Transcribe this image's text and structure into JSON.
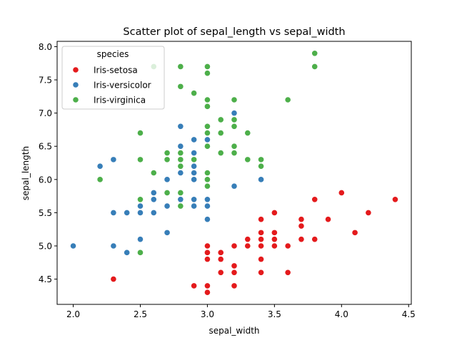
{
  "chart_data": {
    "type": "scatter",
    "title": "Scatter plot of sepal_length vs sepal_width",
    "xlabel": "sepal_width",
    "ylabel": "sepal_length",
    "xlim": [
      1.88,
      4.52
    ],
    "ylim": [
      4.12,
      8.08
    ],
    "xticks": [
      2.0,
      2.5,
      3.0,
      3.5,
      4.0,
      4.5
    ],
    "xtick_labels": [
      "2.0",
      "2.5",
      "3.0",
      "3.5",
      "4.0",
      "4.5"
    ],
    "yticks": [
      4.5,
      5.0,
      5.5,
      6.0,
      6.5,
      7.0,
      7.5,
      8.0
    ],
    "ytick_labels": [
      "4.5",
      "5.0",
      "5.5",
      "6.0",
      "6.5",
      "7.0",
      "7.5",
      "8.0"
    ],
    "grid": false,
    "legend": {
      "title": "species",
      "placement": "upper-left"
    },
    "series": [
      {
        "name": "Iris-setosa",
        "color": "#e41a1c",
        "points": [
          [
            3.5,
            5.1
          ],
          [
            3.0,
            4.9
          ],
          [
            3.2,
            4.7
          ],
          [
            3.1,
            4.6
          ],
          [
            3.6,
            5.0
          ],
          [
            3.9,
            5.4
          ],
          [
            3.4,
            4.6
          ],
          [
            3.4,
            5.0
          ],
          [
            2.9,
            4.4
          ],
          [
            3.1,
            4.9
          ],
          [
            3.7,
            5.4
          ],
          [
            3.4,
            4.8
          ],
          [
            3.0,
            4.8
          ],
          [
            3.0,
            4.3
          ],
          [
            4.0,
            5.8
          ],
          [
            4.4,
            5.7
          ],
          [
            3.9,
            5.4
          ],
          [
            3.5,
            5.1
          ],
          [
            3.8,
            5.7
          ],
          [
            3.8,
            5.1
          ],
          [
            3.4,
            5.4
          ],
          [
            3.7,
            5.1
          ],
          [
            3.6,
            4.6
          ],
          [
            3.3,
            5.1
          ],
          [
            3.4,
            4.8
          ],
          [
            3.0,
            5.0
          ],
          [
            3.4,
            5.0
          ],
          [
            3.5,
            5.2
          ],
          [
            3.4,
            5.2
          ],
          [
            3.2,
            4.7
          ],
          [
            3.1,
            4.8
          ],
          [
            3.4,
            5.4
          ],
          [
            4.1,
            5.2
          ],
          [
            4.2,
            5.5
          ],
          [
            3.1,
            4.9
          ],
          [
            3.2,
            5.0
          ],
          [
            3.5,
            5.5
          ],
          [
            3.1,
            4.9
          ],
          [
            3.0,
            4.4
          ],
          [
            3.4,
            5.1
          ],
          [
            3.5,
            5.0
          ],
          [
            2.3,
            4.5
          ],
          [
            3.2,
            4.4
          ],
          [
            3.5,
            5.0
          ],
          [
            3.8,
            5.1
          ],
          [
            3.0,
            4.8
          ],
          [
            3.8,
            5.1
          ],
          [
            3.2,
            4.6
          ],
          [
            3.7,
            5.3
          ],
          [
            3.3,
            5.0
          ]
        ]
      },
      {
        "name": "Iris-versicolor",
        "color": "#377eb8",
        "points": [
          [
            3.2,
            7.0
          ],
          [
            3.2,
            6.4
          ],
          [
            3.1,
            6.9
          ],
          [
            2.3,
            5.5
          ],
          [
            2.8,
            6.5
          ],
          [
            2.8,
            5.7
          ],
          [
            3.3,
            6.3
          ],
          [
            2.4,
            4.9
          ],
          [
            2.9,
            6.6
          ],
          [
            2.7,
            5.2
          ],
          [
            2.0,
            5.0
          ],
          [
            3.0,
            5.9
          ],
          [
            2.2,
            6.0
          ],
          [
            2.9,
            6.1
          ],
          [
            2.9,
            5.6
          ],
          [
            3.1,
            6.7
          ],
          [
            3.0,
            5.6
          ],
          [
            2.7,
            5.8
          ],
          [
            2.2,
            6.2
          ],
          [
            2.5,
            5.6
          ],
          [
            3.2,
            5.9
          ],
          [
            2.8,
            6.1
          ],
          [
            2.5,
            6.3
          ],
          [
            2.8,
            6.1
          ],
          [
            2.9,
            6.4
          ],
          [
            3.0,
            6.6
          ],
          [
            2.8,
            6.8
          ],
          [
            3.0,
            6.7
          ],
          [
            2.9,
            6.0
          ],
          [
            2.6,
            5.7
          ],
          [
            2.4,
            5.5
          ],
          [
            2.4,
            5.5
          ],
          [
            2.7,
            5.8
          ],
          [
            2.7,
            6.0
          ],
          [
            3.0,
            5.4
          ],
          [
            3.4,
            6.0
          ],
          [
            3.1,
            6.7
          ],
          [
            2.3,
            6.3
          ],
          [
            3.0,
            5.6
          ],
          [
            2.5,
            5.5
          ],
          [
            2.6,
            5.5
          ],
          [
            3.0,
            6.1
          ],
          [
            2.6,
            5.8
          ],
          [
            2.3,
            5.0
          ],
          [
            2.7,
            5.6
          ],
          [
            3.0,
            5.7
          ],
          [
            2.9,
            5.7
          ],
          [
            2.9,
            6.2
          ],
          [
            2.5,
            5.1
          ],
          [
            2.8,
            5.7
          ]
        ]
      },
      {
        "name": "Iris-virginica",
        "color": "#4daf4a",
        "points": [
          [
            3.3,
            6.3
          ],
          [
            2.7,
            5.8
          ],
          [
            3.0,
            7.1
          ],
          [
            2.9,
            6.3
          ],
          [
            3.0,
            6.5
          ],
          [
            3.0,
            7.6
          ],
          [
            2.5,
            4.9
          ],
          [
            2.9,
            7.3
          ],
          [
            2.5,
            6.7
          ],
          [
            3.6,
            7.2
          ],
          [
            3.2,
            6.5
          ],
          [
            2.7,
            6.4
          ],
          [
            3.0,
            6.8
          ],
          [
            2.5,
            5.7
          ],
          [
            2.8,
            5.8
          ],
          [
            3.2,
            6.4
          ],
          [
            3.0,
            6.5
          ],
          [
            3.8,
            7.7
          ],
          [
            2.6,
            7.7
          ],
          [
            2.2,
            6.0
          ],
          [
            3.2,
            6.9
          ],
          [
            2.8,
            5.6
          ],
          [
            2.8,
            7.7
          ],
          [
            2.7,
            6.3
          ],
          [
            3.3,
            6.7
          ],
          [
            3.2,
            7.2
          ],
          [
            2.8,
            6.2
          ],
          [
            3.0,
            6.1
          ],
          [
            2.8,
            6.4
          ],
          [
            3.0,
            7.2
          ],
          [
            2.8,
            7.4
          ],
          [
            3.8,
            7.9
          ],
          [
            2.8,
            6.4
          ],
          [
            2.8,
            6.3
          ],
          [
            2.6,
            6.1
          ],
          [
            3.0,
            7.7
          ],
          [
            3.4,
            6.3
          ],
          [
            3.1,
            6.4
          ],
          [
            3.0,
            6.0
          ],
          [
            3.1,
            6.9
          ],
          [
            3.1,
            6.7
          ],
          [
            3.1,
            6.9
          ],
          [
            2.7,
            5.8
          ],
          [
            3.2,
            6.8
          ],
          [
            3.3,
            6.7
          ],
          [
            3.0,
            6.7
          ],
          [
            2.5,
            6.3
          ],
          [
            3.0,
            6.5
          ],
          [
            3.4,
            6.2
          ],
          [
            3.0,
            5.9
          ]
        ]
      }
    ]
  }
}
